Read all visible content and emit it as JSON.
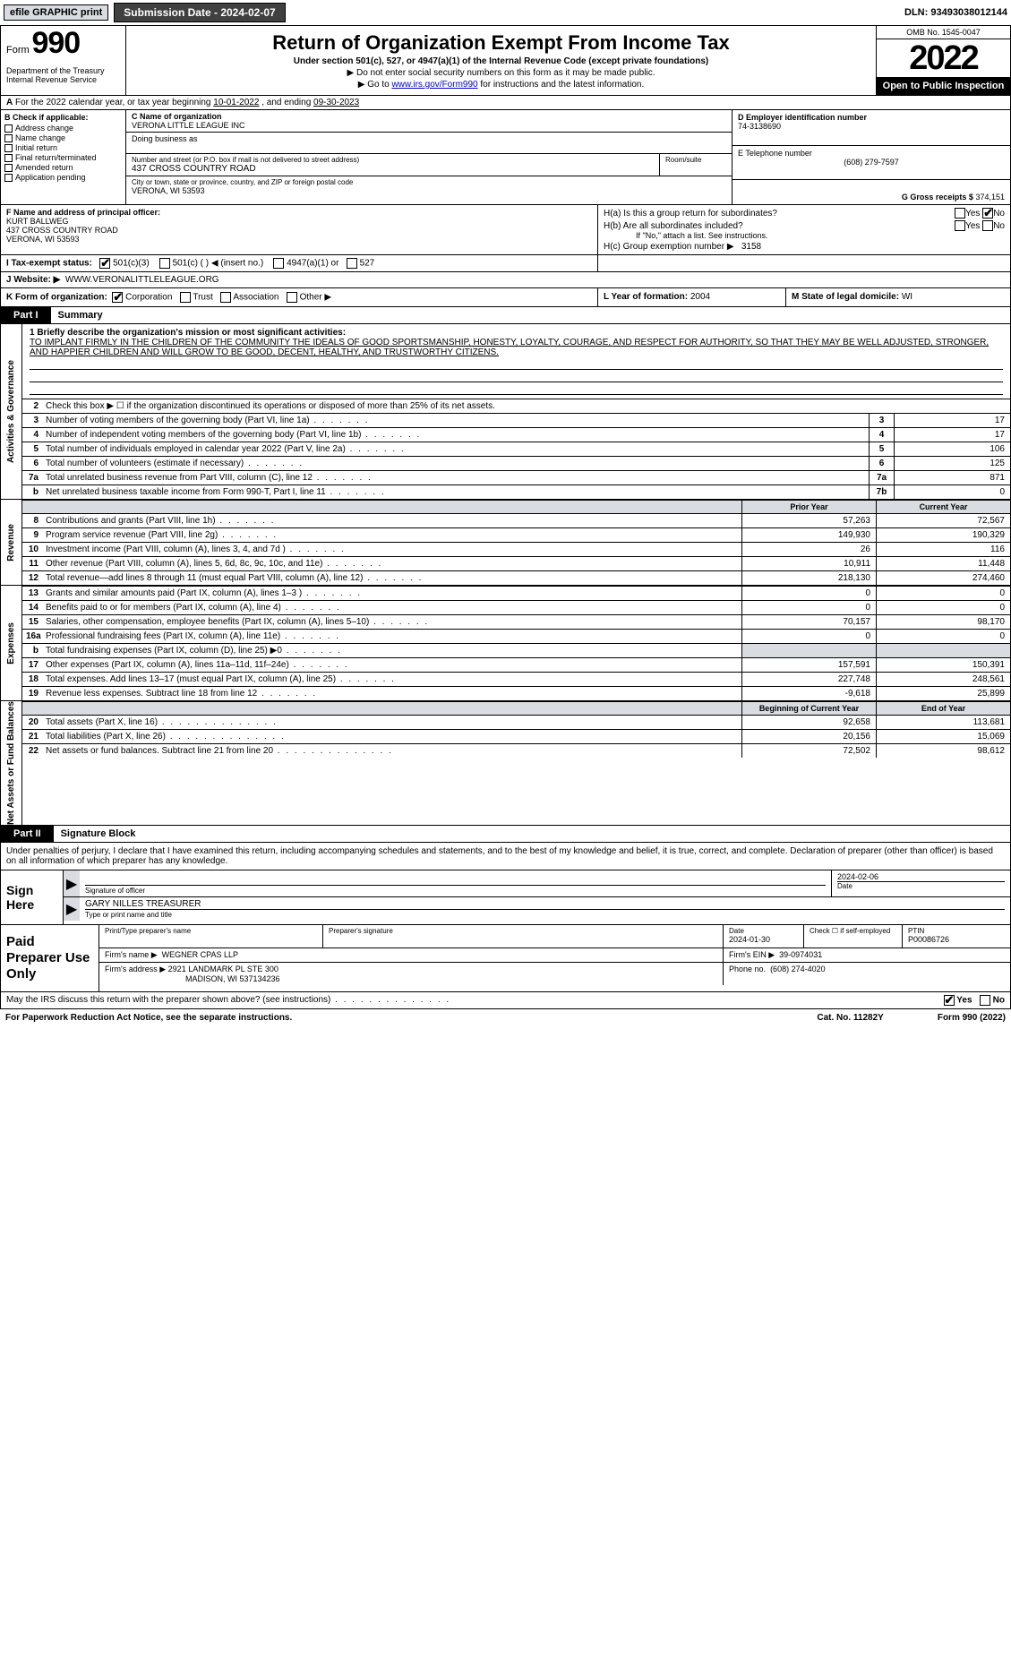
{
  "topbar": {
    "efile": "efile GRAPHIC print",
    "submission": "Submission Date - 2024-02-07",
    "dln": "DLN: 93493038012144"
  },
  "header": {
    "form_prefix": "Form",
    "form_number": "990",
    "main_title": "Return of Organization Exempt From Income Tax",
    "sub1": "Under section 501(c), 527, or 4947(a)(1) of the Internal Revenue Code (except private foundations)",
    "sub2a": "▶ Do not enter social security numbers on this form as it may be made public.",
    "sub2b_pre": "▶ Go to ",
    "sub2b_link": "www.irs.gov/Form990",
    "sub2b_post": " for instructions and the latest information.",
    "dept": "Department of the Treasury\nInternal Revenue Service",
    "omb": "OMB No. 1545-0047",
    "tax_year": "2022",
    "open_pub": "Open to Public Inspection"
  },
  "period": {
    "text_a": "For the 2022 calendar year, or tax year beginning ",
    "begin": "10-01-2022",
    "text_b": " , and ending ",
    "end": "09-30-2023"
  },
  "box_b": {
    "hdr": "B Check if applicable:",
    "items": [
      "Address change",
      "Name change",
      "Initial return",
      "Final return/terminated",
      "Amended return",
      "Application pending"
    ]
  },
  "box_c": {
    "name_lbl": "C Name of organization",
    "name": "VERONA LITTLE LEAGUE INC",
    "dba_lbl": "Doing business as",
    "addr_lbl": "Number and street (or P.O. box if mail is not delivered to street address)",
    "room_lbl": "Room/suite",
    "addr": "437 CROSS COUNTRY ROAD",
    "city_lbl": "City or town, state or province, country, and ZIP or foreign postal code",
    "city": "VERONA, WI  53593"
  },
  "box_d": {
    "lbl": "D Employer identification number",
    "val": "74-3138690"
  },
  "box_e": {
    "lbl": "E Telephone number",
    "val": "(608) 279-7597"
  },
  "box_g": {
    "lbl": "G Gross receipts $",
    "val": "374,151"
  },
  "box_f": {
    "lbl": "F  Name and address of principal officer:",
    "name": "KURT BALLWEG",
    "addr1": "437 CROSS COUNTRY ROAD",
    "addr2": "VERONA, WI  53593"
  },
  "box_h": {
    "a_lbl": "H(a)  Is this a group return for subordinates?",
    "b_lbl": "H(b)  Are all subordinates included?",
    "b_note": "If \"No,\" attach a list. See instructions.",
    "c_lbl": "H(c)  Group exemption number ▶",
    "c_val": "3158",
    "yes": "Yes",
    "no": "No"
  },
  "box_i": {
    "lbl": "I  Tax-exempt status:",
    "opts": [
      "501(c)(3)",
      "501(c) (   ) ◀ (insert no.)",
      "4947(a)(1) or",
      "527"
    ]
  },
  "box_j": {
    "lbl": "J  Website: ▶",
    "val": "WWW.VERONALITTLELEAGUE.ORG"
  },
  "box_k": {
    "lbl": "K Form of organization:",
    "opts": [
      "Corporation",
      "Trust",
      "Association",
      "Other ▶"
    ]
  },
  "box_l": {
    "lbl": "L Year of formation:",
    "val": "2004"
  },
  "box_m": {
    "lbl": "M State of legal domicile:",
    "val": "WI"
  },
  "part1": {
    "tab": "Part I",
    "title": "Summary",
    "section_a": "Activities & Governance",
    "section_b": "Revenue",
    "section_c": "Expenses",
    "section_d": "Net Assets or Fund Balances",
    "line1_lbl": "1  Briefly describe the organization's mission or most significant activities:",
    "line1_text": "TO IMPLANT FIRMLY IN THE CHILDREN OF THE COMMUNITY THE IDEALS OF GOOD SPORTSMANSHIP, HONESTY, LOYALTY, COURAGE, AND RESPECT FOR AUTHORITY, SO THAT THEY MAY BE WELL ADJUSTED, STRONGER, AND HAPPIER CHILDREN AND WILL GROW TO BE GOOD, DECENT, HEALTHY, AND TRUSTWORTHY CITIZENS.",
    "line2": "Check this box ▶ ☐ if the organization discontinued its operations or disposed of more than 25% of its net assets.",
    "rows_a": [
      {
        "n": "3",
        "d": "Number of voting members of the governing body (Part VI, line 1a)",
        "box": "3",
        "v": "17"
      },
      {
        "n": "4",
        "d": "Number of independent voting members of the governing body (Part VI, line 1b)",
        "box": "4",
        "v": "17"
      },
      {
        "n": "5",
        "d": "Total number of individuals employed in calendar year 2022 (Part V, line 2a)",
        "box": "5",
        "v": "106"
      },
      {
        "n": "6",
        "d": "Total number of volunteers (estimate if necessary)",
        "box": "6",
        "v": "125"
      },
      {
        "n": "7a",
        "d": "Total unrelated business revenue from Part VIII, column (C), line 12",
        "box": "7a",
        "v": "871"
      },
      {
        "n": "b",
        "d": "Net unrelated business taxable income from Form 990-T, Part I, line 11",
        "box": "7b",
        "v": "0"
      }
    ],
    "hdr_prior": "Prior Year",
    "hdr_curr": "Current Year",
    "rows_rev": [
      {
        "n": "8",
        "d": "Contributions and grants (Part VIII, line 1h)",
        "p": "57,263",
        "c": "72,567"
      },
      {
        "n": "9",
        "d": "Program service revenue (Part VIII, line 2g)",
        "p": "149,930",
        "c": "190,329"
      },
      {
        "n": "10",
        "d": "Investment income (Part VIII, column (A), lines 3, 4, and 7d )",
        "p": "26",
        "c": "116"
      },
      {
        "n": "11",
        "d": "Other revenue (Part VIII, column (A), lines 5, 6d, 8c, 9c, 10c, and 11e)",
        "p": "10,911",
        "c": "11,448"
      },
      {
        "n": "12",
        "d": "Total revenue—add lines 8 through 11 (must equal Part VIII, column (A), line 12)",
        "p": "218,130",
        "c": "274,460"
      }
    ],
    "rows_exp": [
      {
        "n": "13",
        "d": "Grants and similar amounts paid (Part IX, column (A), lines 1–3 )",
        "p": "0",
        "c": "0"
      },
      {
        "n": "14",
        "d": "Benefits paid to or for members (Part IX, column (A), line 4)",
        "p": "0",
        "c": "0"
      },
      {
        "n": "15",
        "d": "Salaries, other compensation, employee benefits (Part IX, column (A), lines 5–10)",
        "p": "70,157",
        "c": "98,170"
      },
      {
        "n": "16a",
        "d": "Professional fundraising fees (Part IX, column (A), line 11e)",
        "p": "0",
        "c": "0"
      },
      {
        "n": "b",
        "d": "Total fundraising expenses (Part IX, column (D), line 25) ▶0",
        "p": "",
        "c": "",
        "shade": true
      },
      {
        "n": "17",
        "d": "Other expenses (Part IX, column (A), lines 11a–11d, 11f–24e)",
        "p": "157,591",
        "c": "150,391"
      },
      {
        "n": "18",
        "d": "Total expenses. Add lines 13–17 (must equal Part IX, column (A), line 25)",
        "p": "227,748",
        "c": "248,561"
      },
      {
        "n": "19",
        "d": "Revenue less expenses. Subtract line 18 from line 12",
        "p": "-9,618",
        "c": "25,899"
      }
    ],
    "hdr_begin": "Beginning of Current Year",
    "hdr_end": "End of Year",
    "rows_net": [
      {
        "n": "20",
        "d": "Total assets (Part X, line 16)",
        "p": "92,658",
        "c": "113,681"
      },
      {
        "n": "21",
        "d": "Total liabilities (Part X, line 26)",
        "p": "20,156",
        "c": "15,069"
      },
      {
        "n": "22",
        "d": "Net assets or fund balances. Subtract line 21 from line 20",
        "p": "72,502",
        "c": "98,612"
      }
    ]
  },
  "part2": {
    "tab": "Part II",
    "title": "Signature Block",
    "intro": "Under penalties of perjury, I declare that I have examined this return, including accompanying schedules and statements, and to the best of my knowledge and belief, it is true, correct, and complete. Declaration of preparer (other than officer) is based on all information of which preparer has any knowledge.",
    "sign_here": "Sign Here",
    "sig_officer_lbl": "Signature of officer",
    "sig_date": "2024-02-06",
    "sig_date_lbl": "Date",
    "officer_name": "GARY NILLES  TREASURER",
    "officer_name_lbl": "Type or print name and title",
    "paid_prep": "Paid Preparer Use Only",
    "prep_name_lbl": "Print/Type preparer's name",
    "prep_sig_lbl": "Preparer's signature",
    "prep_date_lbl": "Date",
    "prep_date": "2024-01-30",
    "prep_check_lbl": "Check ☐ if self-employed",
    "ptin_lbl": "PTIN",
    "ptin": "P00086726",
    "firm_name_lbl": "Firm's name    ▶",
    "firm_name": "WEGNER CPAS LLP",
    "firm_ein_lbl": "Firm's EIN ▶",
    "firm_ein": "39-0974031",
    "firm_addr_lbl": "Firm's address ▶",
    "firm_addr1": "2921 LANDMARK PL STE 300",
    "firm_addr2": "MADISON, WI  537134236",
    "phone_lbl": "Phone no.",
    "phone": "(608) 274-4020",
    "discuss": "May the IRS discuss this return with the preparer shown above? (see instructions)",
    "yes": "Yes",
    "no": "No"
  },
  "footer": {
    "pra": "For Paperwork Reduction Act Notice, see the separate instructions.",
    "cat": "Cat. No. 11282Y",
    "form": "Form 990 (2022)"
  }
}
